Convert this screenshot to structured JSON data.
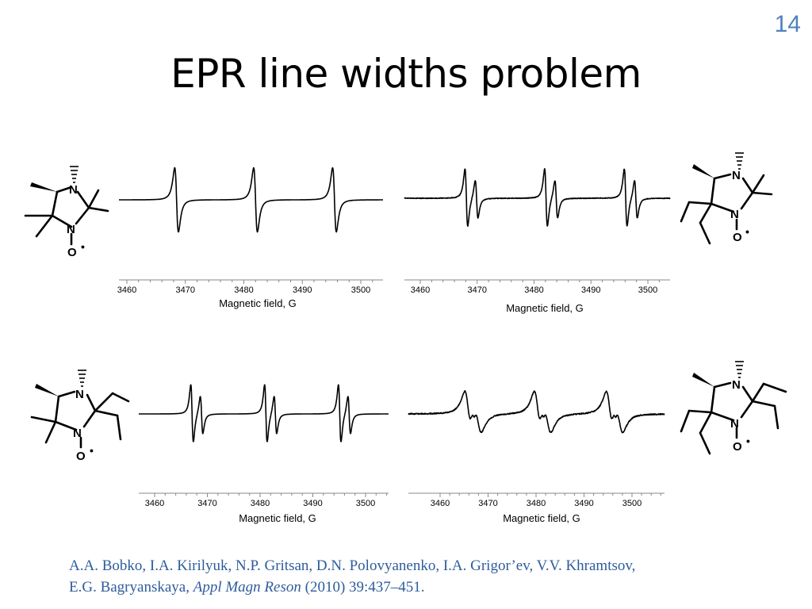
{
  "slide": {
    "number": "14",
    "title": "EPR line widths problem"
  },
  "citation": {
    "authors_line1": "A.A. Bobko, I.A. Kirilyuk, N.P. Gritsan, D.N. Polovyanenko, I.A. Grigor’ev,  V.V. Khramtsov,",
    "authors_line2": "E.G. Bagryanskaya,",
    "journal": "Appl Magn Reson",
    "details": "(2010) 39:437–451."
  },
  "molecules": {
    "atom_N": "N",
    "atom_O": "O",
    "radical": "•"
  },
  "chart_data": [
    {
      "type": "line",
      "xlabel": "Magnetic field, G",
      "ticks": [
        3460,
        3470,
        3480,
        3490,
        3500
      ],
      "xlim": [
        3460,
        3500
      ],
      "peak_groups": [
        3468.5,
        3482.0,
        3495.5
      ],
      "series": [
        {
          "values": "three single-line derivative EPR signals"
        }
      ]
    },
    {
      "type": "line",
      "xlabel": "Magnetic field, G",
      "ticks": [
        3460,
        3470,
        3480,
        3490,
        3500
      ],
      "xlim": [
        3460,
        3500
      ],
      "peak_groups": [
        3469.0,
        3483.0,
        3497.0
      ],
      "series": [
        {
          "values": "three doublet derivative EPR signals"
        }
      ]
    },
    {
      "type": "line",
      "xlabel": "Magnetic field, G",
      "ticks": [
        3460,
        3470,
        3480,
        3490,
        3500
      ],
      "xlim": [
        3460,
        3500
      ],
      "peak_groups": [
        3468.0,
        3482.0,
        3496.0
      ],
      "series": [
        {
          "values": "three doublet derivative EPR signals"
        }
      ]
    },
    {
      "type": "line",
      "xlabel": "Magnetic field, G",
      "ticks": [
        3460,
        3470,
        3480,
        3490,
        3500
      ],
      "xlim": [
        3460,
        3500
      ],
      "peak_groups": [
        3467.0,
        3481.5,
        3496.5
      ],
      "series": [
        {
          "values": "three broad derivative EPR signals"
        }
      ]
    }
  ]
}
